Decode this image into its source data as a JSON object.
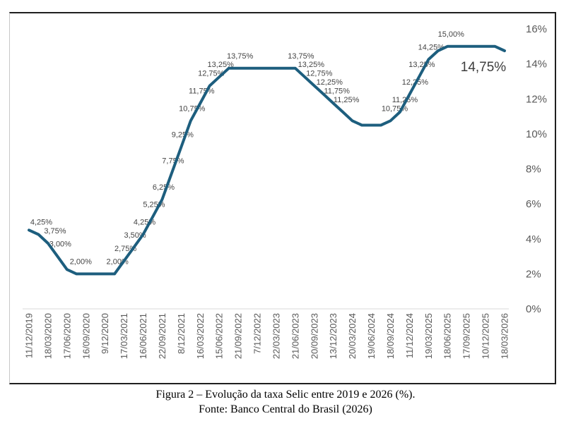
{
  "figure": {
    "caption_line1": "Figura 2 – Evolução da taxa Selic entre 2019 e 2026 (%).",
    "caption_line2": "Fonte: Banco Central do Brasil (2026)"
  },
  "chart_data": {
    "type": "line",
    "title": "Evolução da taxa Selic entre 2019 e 2026 (%)",
    "xlabel": "",
    "ylabel": "",
    "ylim": [
      0,
      16
    ],
    "grid": false,
    "legend_position": "none",
    "y_axis_side": "right",
    "y_ticks": [
      "0%",
      "2%",
      "4%",
      "6%",
      "8%",
      "10%",
      "12%",
      "14%",
      "16%"
    ],
    "x_tick_labels": [
      "11/12/2019",
      "18/03/2020",
      "17/06/2020",
      "16/09/2020",
      "9/12/2020",
      "17/03/2021",
      "16/06/2021",
      "22/09/2021",
      "8/12/2021",
      "16/03/2022",
      "15/06/2022",
      "21/09/2022",
      "7/12/2022",
      "22/03/2023",
      "21/06/2023",
      "20/09/2023",
      "13/12/2023",
      "20/03/2024",
      "19/06/2024",
      "18/09/2024",
      "11/12/2024",
      "19/03/2025",
      "18/06/2025",
      "17/09/2025",
      "10/12/2025",
      "18/03/2026"
    ],
    "x_ticks_every_nth_point": 2,
    "values": [
      4.5,
      4.25,
      3.75,
      3.0,
      2.25,
      2.0,
      2.0,
      2.0,
      2.0,
      2.0,
      2.75,
      3.5,
      4.25,
      5.25,
      6.25,
      7.75,
      9.25,
      10.75,
      11.75,
      12.75,
      13.25,
      13.75,
      13.75,
      13.75,
      13.75,
      13.75,
      13.75,
      13.75,
      13.75,
      13.25,
      12.75,
      12.25,
      11.75,
      11.25,
      10.75,
      10.5,
      10.5,
      10.5,
      10.75,
      11.25,
      12.25,
      13.25,
      14.25,
      14.75,
      15.0,
      15.0,
      15.0,
      15.0,
      15.0,
      15.0,
      14.75
    ],
    "point_labels": [
      {
        "i": 1,
        "text": "4,25%",
        "dx": 4
      },
      {
        "i": 2,
        "text": "3,75%",
        "dx": 10
      },
      {
        "i": 3,
        "text": "3,00%",
        "dx": 4
      },
      {
        "i": 5,
        "text": "2,00%",
        "dx": 6
      },
      {
        "i": 9,
        "text": "2,00%",
        "dx": 4
      },
      {
        "i": 10,
        "text": "2,75%"
      },
      {
        "i": 11,
        "text": "3,50%"
      },
      {
        "i": 12,
        "text": "4,25%"
      },
      {
        "i": 13,
        "text": "5,25%"
      },
      {
        "i": 14,
        "text": "6,25%"
      },
      {
        "i": 15,
        "text": "7,75%"
      },
      {
        "i": 16,
        "text": "9,25%"
      },
      {
        "i": 17,
        "text": "10,75%"
      },
      {
        "i": 18,
        "text": "11,75%"
      },
      {
        "i": 19,
        "text": "12,75%"
      },
      {
        "i": 20,
        "text": "13,25%"
      },
      {
        "i": 21,
        "text": "13,75%",
        "dx": 16
      },
      {
        "i": 28,
        "text": "13,75%",
        "dx": 8
      },
      {
        "i": 29,
        "text": "13,25%",
        "dx": 9
      },
      {
        "i": 30,
        "text": "12,75%",
        "dx": 7
      },
      {
        "i": 31,
        "text": "12,25%",
        "dx": 8
      },
      {
        "i": 32,
        "text": "11,75%",
        "dx": 5
      },
      {
        "i": 33,
        "text": "11,25%",
        "dx": 5
      },
      {
        "i": 38,
        "text": "10,75%",
        "dx": 6
      },
      {
        "i": 39,
        "text": "11,25%",
        "dx": 7
      },
      {
        "i": 40,
        "text": "12,25%",
        "dx": 8
      },
      {
        "i": 41,
        "text": "13,25%",
        "dx": 4
      },
      {
        "i": 42,
        "text": "14,25%",
        "dx": 4
      },
      {
        "i": 44,
        "text": "15,00%",
        "dx": 5
      },
      {
        "i": 50,
        "text": "14,75%",
        "big": true,
        "dx": -30,
        "dy": 29
      }
    ],
    "colors": {
      "line": "#1d5e7e",
      "data_label": "#444444",
      "big_label": "#3d3d3d",
      "axis_label": "#595959",
      "axis_line": "#d9d9d9"
    }
  }
}
